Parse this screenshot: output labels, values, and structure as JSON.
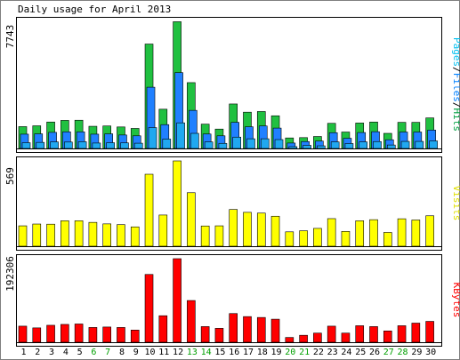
{
  "chart_data": [
    {
      "type": "bar",
      "title": "Daily usage for April 2013",
      "ymax_label": "7743",
      "ylim": [
        0,
        7743
      ],
      "legend": [
        {
          "text": "Pages",
          "color": "#00c0f0"
        },
        {
          "text": "Files",
          "color": "#0080ff"
        },
        {
          "text": "Hits",
          "color": "#00a040"
        }
      ],
      "legend_separator": "/",
      "categories": [
        "1",
        "2",
        "3",
        "4",
        "5",
        "6",
        "7",
        "8",
        "9",
        "10",
        "11",
        "12",
        "13",
        "14",
        "15",
        "16",
        "17",
        "18",
        "19",
        "20",
        "21",
        "22",
        "23",
        "24",
        "25",
        "26",
        "27",
        "28",
        "29",
        "30"
      ],
      "weekend_days": [
        "6",
        "7",
        "13",
        "14",
        "20",
        "21",
        "27",
        "28"
      ],
      "series": [
        {
          "name": "Hits",
          "color": "#20c040",
          "values": [
            1330,
            1380,
            1610,
            1710,
            1720,
            1350,
            1370,
            1310,
            1220,
            6360,
            2390,
            7720,
            4010,
            1480,
            1180,
            2710,
            2210,
            2250,
            1990,
            640,
            660,
            730,
            1530,
            1000,
            1550,
            1610,
            920,
            1590,
            1590,
            1860
          ]
        },
        {
          "name": "Files",
          "color": "#2080ff",
          "values": [
            870,
            890,
            980,
            1010,
            1010,
            870,
            890,
            820,
            770,
            3730,
            1450,
            4620,
            2320,
            880,
            770,
            1590,
            1320,
            1370,
            1240,
            330,
            420,
            450,
            960,
            620,
            970,
            1020,
            530,
            1000,
            1000,
            1120
          ]
        },
        {
          "name": "Pages",
          "color": "#20a8f0",
          "values": [
            350,
            370,
            400,
            390,
            410,
            330,
            350,
            340,
            320,
            1270,
            570,
            1560,
            920,
            400,
            310,
            690,
            590,
            590,
            540,
            110,
            190,
            160,
            400,
            300,
            400,
            420,
            210,
            430,
            430,
            460
          ]
        }
      ]
    },
    {
      "type": "bar",
      "ymax_label": "569",
      "ylim": [
        0,
        569
      ],
      "legend": [
        {
          "text": "Visits",
          "color": "#e0e000"
        }
      ],
      "categories": [
        "1",
        "2",
        "3",
        "4",
        "5",
        "6",
        "7",
        "8",
        "9",
        "10",
        "11",
        "12",
        "13",
        "14",
        "15",
        "16",
        "17",
        "18",
        "19",
        "20",
        "21",
        "22",
        "23",
        "24",
        "25",
        "26",
        "27",
        "28",
        "29",
        "30"
      ],
      "series": [
        {
          "name": "Visits",
          "color": "#ffff00",
          "values": [
            136,
            148,
            147,
            170,
            170,
            159,
            149,
            144,
            129,
            480,
            208,
            569,
            357,
            135,
            136,
            245,
            226,
            221,
            200,
            96,
            103,
            119,
            184,
            99,
            170,
            177,
            92,
            183,
            175,
            203
          ]
        }
      ]
    },
    {
      "type": "bar",
      "ymax_label": "192306",
      "ylim": [
        0,
        192306
      ],
      "legend": [
        {
          "text": "KBytes",
          "color": "#ff0000"
        }
      ],
      "categories": [
        "1",
        "2",
        "3",
        "4",
        "5",
        "6",
        "7",
        "8",
        "9",
        "10",
        "11",
        "12",
        "13",
        "14",
        "15",
        "16",
        "17",
        "18",
        "19",
        "20",
        "21",
        "22",
        "23",
        "24",
        "25",
        "26",
        "27",
        "28",
        "29",
        "30"
      ],
      "series": [
        {
          "name": "KBytes",
          "color": "#ff0000",
          "values": [
            37000,
            33000,
            39000,
            41000,
            42000,
            34000,
            35000,
            34000,
            28000,
            156000,
            61000,
            192306,
            96000,
            36000,
            32000,
            66000,
            59000,
            57000,
            53000,
            11000,
            16000,
            21000,
            37000,
            21000,
            38000,
            36000,
            26000,
            38000,
            44000,
            48000
          ]
        }
      ]
    }
  ]
}
